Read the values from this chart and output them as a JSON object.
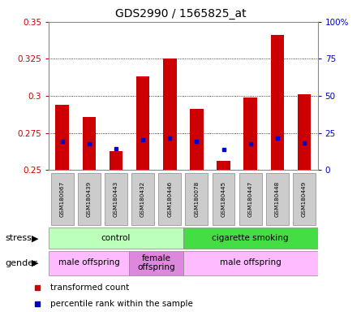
{
  "title": "GDS2990 / 1565825_at",
  "samples": [
    "GSM180067",
    "GSM180439",
    "GSM180443",
    "GSM180432",
    "GSM180446",
    "GSM180078",
    "GSM180445",
    "GSM180447",
    "GSM180448",
    "GSM180449"
  ],
  "bar_values": [
    0.294,
    0.286,
    0.263,
    0.313,
    0.325,
    0.291,
    0.256,
    0.299,
    0.341,
    0.301
  ],
  "bar_bottom": 0.25,
  "dot_values": [
    0.2695,
    0.2675,
    0.2645,
    0.2705,
    0.2715,
    0.2695,
    0.264,
    0.2675,
    0.2715,
    0.2685
  ],
  "ylim": [
    0.25,
    0.35
  ],
  "y2lim": [
    0,
    100
  ],
  "yticks": [
    0.25,
    0.275,
    0.3,
    0.325,
    0.35
  ],
  "y2ticks": [
    0,
    25,
    50,
    75,
    100
  ],
  "bar_color": "#cc0000",
  "dot_color": "#0000cc",
  "stress_groups": [
    {
      "label": "control",
      "start": 0,
      "end": 4,
      "color": "#bbffbb"
    },
    {
      "label": "cigarette smoking",
      "start": 5,
      "end": 9,
      "color": "#44dd44"
    }
  ],
  "gender_groups": [
    {
      "label": "male offspring",
      "start": 0,
      "end": 2,
      "color": "#ffbbff"
    },
    {
      "label": "female\noffspring",
      "start": 3,
      "end": 4,
      "color": "#dd88dd"
    },
    {
      "label": "male offspring",
      "start": 5,
      "end": 9,
      "color": "#ffbbff"
    }
  ],
  "stress_label": "stress",
  "gender_label": "gender",
  "legend_red": "transformed count",
  "legend_blue": "percentile rank within the sample",
  "axis_color_left": "#cc0000",
  "axis_color_right": "#0000cc",
  "grid_color": "black",
  "grid_lw": 0.6,
  "bar_width": 0.5,
  "sample_box_color": "#cccccc",
  "sample_box_edge": "#888888"
}
